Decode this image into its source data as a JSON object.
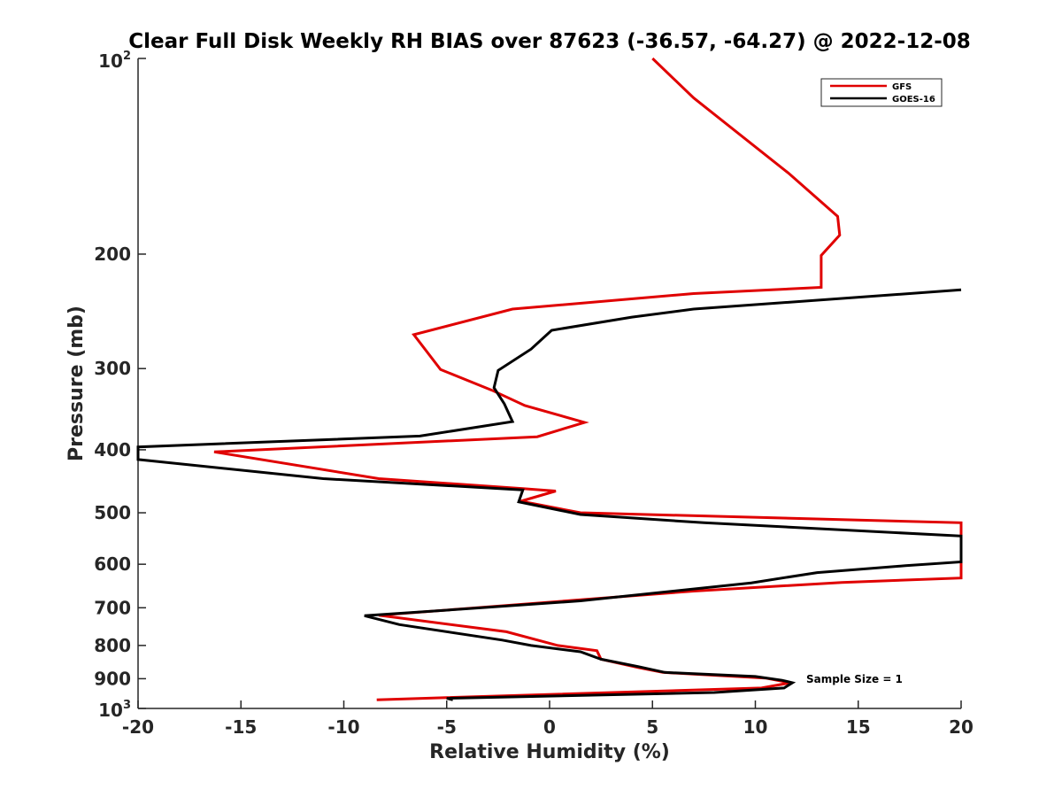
{
  "chart_data": {
    "type": "line",
    "title": "Clear Full Disk Weekly RH BIAS over 87623 (-36.57, -64.27) @ 2022-12-08",
    "xlabel": "Relative Humidity (%)",
    "ylabel": "Pressure (mb)",
    "xlim": [
      -20,
      20
    ],
    "ylim": [
      100,
      1000
    ],
    "yscale": "log",
    "y_reversed": true,
    "x_ticks": [
      -20,
      -15,
      -10,
      -5,
      0,
      5,
      10,
      15,
      20
    ],
    "x_tick_labels": [
      "-20",
      "-15",
      "-10",
      "-5",
      "0",
      "5",
      "10",
      "15",
      "20"
    ],
    "y_ticks": [
      200,
      300,
      400,
      500,
      600,
      700,
      800,
      900
    ],
    "y_tick_labels": [
      "200",
      "300",
      "400",
      "500",
      "600",
      "700",
      "800",
      "900"
    ],
    "y_tick_top": {
      "base": "10",
      "exp": "2"
    },
    "y_tick_bottom": {
      "base": "10",
      "exp": "3"
    },
    "grid": false,
    "legend_position": "top-right",
    "annotation": "Sample Size = 1",
    "series": [
      {
        "name": "GFS",
        "color": "#e00000",
        "points": [
          [
            5.0,
            100
          ],
          [
            7.0,
            115
          ],
          [
            11.6,
            150
          ],
          [
            14.0,
            175
          ],
          [
            14.1,
            187
          ],
          [
            13.2,
            201
          ],
          [
            13.2,
            225
          ],
          [
            7.0,
            230
          ],
          [
            -1.8,
            243
          ],
          [
            -6.6,
            266
          ],
          [
            -5.3,
            301
          ],
          [
            -2.8,
            324
          ],
          [
            -1.2,
            342
          ],
          [
            1.7,
            363
          ],
          [
            -0.6,
            382
          ],
          [
            -16.3,
            403
          ],
          [
            -8.3,
            443
          ],
          [
            -1.3,
            459
          ],
          [
            0.3,
            463
          ],
          [
            -1.4,
            480
          ],
          [
            1.5,
            500
          ],
          [
            20.0,
            518
          ],
          [
            20.0,
            630
          ],
          [
            14.2,
            640
          ],
          [
            7.0,
            660
          ],
          [
            -8.3,
            719
          ],
          [
            -2.1,
            762
          ],
          [
            0.4,
            800
          ],
          [
            2.3,
            815
          ],
          [
            2.5,
            840
          ],
          [
            4.3,
            865
          ],
          [
            5.5,
            880
          ],
          [
            10.5,
            898
          ],
          [
            11.7,
            913
          ],
          [
            10.3,
            930
          ],
          [
            -5.0,
            962
          ],
          [
            -8.4,
            970
          ]
        ]
      },
      {
        "name": "GOES-16",
        "color": "#000000",
        "points": [
          [
            20.0,
            227
          ],
          [
            7.0,
            243
          ],
          [
            4.0,
            250
          ],
          [
            0.1,
            262
          ],
          [
            -0.9,
            280
          ],
          [
            -2.5,
            302
          ],
          [
            -2.7,
            321
          ],
          [
            -2.2,
            340
          ],
          [
            -1.8,
            362
          ],
          [
            -6.3,
            381
          ],
          [
            -20.0,
            396
          ],
          [
            -20.0,
            414
          ],
          [
            -11.0,
            443
          ],
          [
            -1.3,
            461
          ],
          [
            -1.5,
            481
          ],
          [
            1.5,
            503
          ],
          [
            7.5,
            518
          ],
          [
            20.0,
            543
          ],
          [
            20.0,
            595
          ],
          [
            17.3,
            603
          ],
          [
            13.0,
            618
          ],
          [
            9.8,
            641
          ],
          [
            1.5,
            683
          ],
          [
            -3.3,
            700
          ],
          [
            -9.0,
            720
          ],
          [
            -7.3,
            743
          ],
          [
            -2.3,
            785
          ],
          [
            -0.9,
            800
          ],
          [
            1.5,
            818
          ],
          [
            2.5,
            840
          ],
          [
            4.3,
            862
          ],
          [
            5.6,
            880
          ],
          [
            10.0,
            893
          ],
          [
            11.3,
            905
          ],
          [
            11.8,
            913
          ],
          [
            11.4,
            930
          ],
          [
            8.0,
            945
          ],
          [
            -5.0,
            965
          ],
          [
            -4.7,
            970
          ]
        ]
      }
    ]
  }
}
